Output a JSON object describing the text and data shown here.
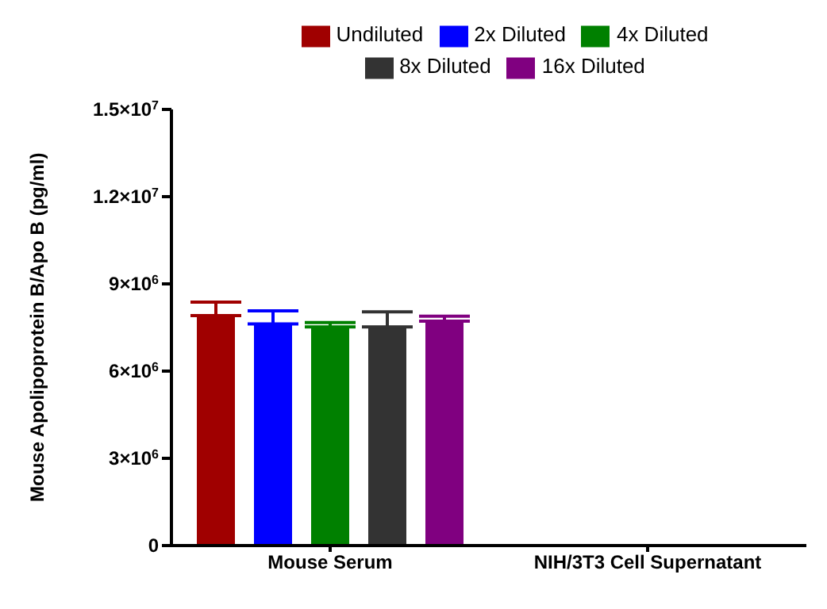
{
  "chart_data": {
    "type": "bar",
    "ylabel": "Mouse Apolipoprotein B/Apo B (pg/ml)",
    "categories": [
      "Mouse Serum",
      "NIH/3T3 Cell Supernatant"
    ],
    "series": [
      {
        "name": "Undiluted",
        "color": "#a00000",
        "values": [
          7910000,
          null
        ],
        "errors": [
          [
            7910000,
            8370000
          ],
          null
        ]
      },
      {
        "name": "2x Diluted",
        "color": "#0000ff",
        "values": [
          7620000,
          null
        ],
        "errors": [
          [
            7620000,
            8070000
          ],
          null
        ]
      },
      {
        "name": "4x Diluted",
        "color": "#008000",
        "values": [
          7520000,
          null
        ],
        "errors": [
          [
            7520000,
            7670000
          ],
          null
        ]
      },
      {
        "name": "8x Diluted",
        "color": "#333333",
        "values": [
          7520000,
          null
        ],
        "errors": [
          [
            7520000,
            8040000
          ],
          null
        ]
      },
      {
        "name": "16x Diluted",
        "color": "#800080",
        "values": [
          7720000,
          null
        ],
        "errors": [
          [
            7720000,
            7890000
          ],
          null
        ]
      }
    ],
    "ylim": [
      0,
      15000000
    ],
    "yticks": [
      0,
      {
        "value": 3000000,
        "label": "3×10$^{6}$"
      },
      {
        "value": 6000000,
        "label": "6×10$^{6}$"
      },
      {
        "value": 9000000,
        "label": "9×10$^{6}$"
      },
      {
        "value": 12000000,
        "label": "1.2×10$^{7}$"
      },
      {
        "value": 15000000,
        "label": "1.5×10$^{7}$"
      }
    ],
    "grid": false,
    "legend": "top"
  }
}
